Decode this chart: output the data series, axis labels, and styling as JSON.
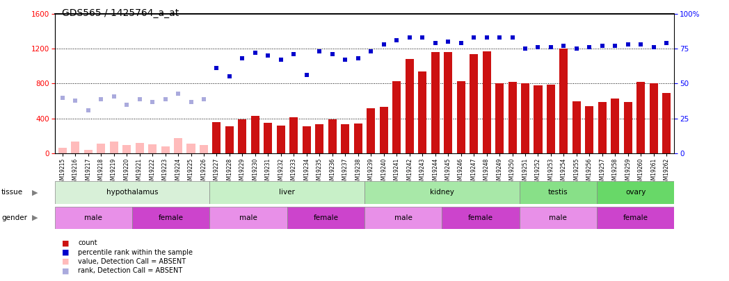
{
  "title": "GDS565 / 1425764_a_at",
  "samples": [
    "GSM19215",
    "GSM19216",
    "GSM19217",
    "GSM19218",
    "GSM19219",
    "GSM19220",
    "GSM19221",
    "GSM19222",
    "GSM19223",
    "GSM19224",
    "GSM19225",
    "GSM19226",
    "GSM19227",
    "GSM19228",
    "GSM19229",
    "GSM19230",
    "GSM19231",
    "GSM19232",
    "GSM19233",
    "GSM19234",
    "GSM19235",
    "GSM19236",
    "GSM19237",
    "GSM19238",
    "GSM19239",
    "GSM19240",
    "GSM19241",
    "GSM19242",
    "GSM19243",
    "GSM19244",
    "GSM19245",
    "GSM19246",
    "GSM19247",
    "GSM19248",
    "GSM19249",
    "GSM19250",
    "GSM19251",
    "GSM19252",
    "GSM19253",
    "GSM19254",
    "GSM19255",
    "GSM19256",
    "GSM19257",
    "GSM19258",
    "GSM19259",
    "GSM19260",
    "GSM19261",
    "GSM19262"
  ],
  "count_values": [
    60,
    130,
    40,
    110,
    130,
    90,
    120,
    100,
    80,
    170,
    110,
    90,
    360,
    310,
    390,
    430,
    350,
    320,
    410,
    310,
    330,
    390,
    330,
    340,
    520,
    530,
    830,
    1080,
    940,
    1160,
    1160,
    830,
    1140,
    1170,
    800,
    820,
    800,
    780,
    790,
    1200,
    600,
    540,
    590,
    630,
    590,
    820,
    800,
    690
  ],
  "absent_flags": [
    true,
    true,
    true,
    true,
    true,
    true,
    true,
    true,
    true,
    true,
    true,
    true,
    false,
    false,
    false,
    false,
    false,
    false,
    false,
    false,
    false,
    false,
    false,
    false,
    false,
    false,
    false,
    false,
    false,
    false,
    false,
    false,
    false,
    false,
    false,
    false,
    false,
    false,
    false,
    false,
    false,
    false,
    false,
    false,
    false,
    false,
    false,
    false
  ],
  "percentile_rank_pct": [
    40,
    38,
    31,
    39,
    41,
    35,
    39,
    37,
    39,
    43,
    37,
    39,
    61,
    55,
    68,
    72,
    70,
    67,
    71,
    56,
    73,
    71,
    67,
    68,
    73,
    78,
    81,
    83,
    83,
    79,
    80,
    79,
    83,
    83,
    83,
    83,
    75,
    76,
    76,
    77,
    75,
    76,
    77,
    77,
    78,
    78,
    76,
    79
  ],
  "tissue_groups": [
    {
      "label": "hypothalamus",
      "start": 0,
      "end": 12,
      "color": "#d8f0d8"
    },
    {
      "label": "liver",
      "start": 12,
      "end": 24,
      "color": "#c8f0c8"
    },
    {
      "label": "kidney",
      "start": 24,
      "end": 36,
      "color": "#a8e8a8"
    },
    {
      "label": "testis",
      "start": 36,
      "end": 42,
      "color": "#88e088"
    },
    {
      "label": "ovary",
      "start": 42,
      "end": 48,
      "color": "#68d868"
    }
  ],
  "gender_groups": [
    {
      "label": "male",
      "start": 0,
      "end": 6,
      "color": "#e890e8"
    },
    {
      "label": "female",
      "start": 6,
      "end": 12,
      "color": "#cc44cc"
    },
    {
      "label": "male",
      "start": 12,
      "end": 18,
      "color": "#e890e8"
    },
    {
      "label": "female",
      "start": 18,
      "end": 24,
      "color": "#cc44cc"
    },
    {
      "label": "male",
      "start": 24,
      "end": 30,
      "color": "#e890e8"
    },
    {
      "label": "female",
      "start": 30,
      "end": 36,
      "color": "#cc44cc"
    },
    {
      "label": "male",
      "start": 36,
      "end": 42,
      "color": "#e890e8"
    },
    {
      "label": "female",
      "start": 42,
      "end": 48,
      "color": "#cc44cc"
    }
  ],
  "ylim_left": [
    0,
    1600
  ],
  "ylim_right": [
    0,
    100
  ],
  "yticks_left": [
    0,
    400,
    800,
    1200,
    1600
  ],
  "yticks_right": [
    0,
    25,
    50,
    75,
    100
  ],
  "bar_color": "#cc1111",
  "absent_bar_color": "#ffbbbb",
  "dot_color": "#0000cc",
  "absent_dot_color": "#aaaadd",
  "title_fontsize": 10,
  "tick_fontsize": 5.5,
  "label_fontsize": 7.5,
  "legend_fontsize": 7
}
